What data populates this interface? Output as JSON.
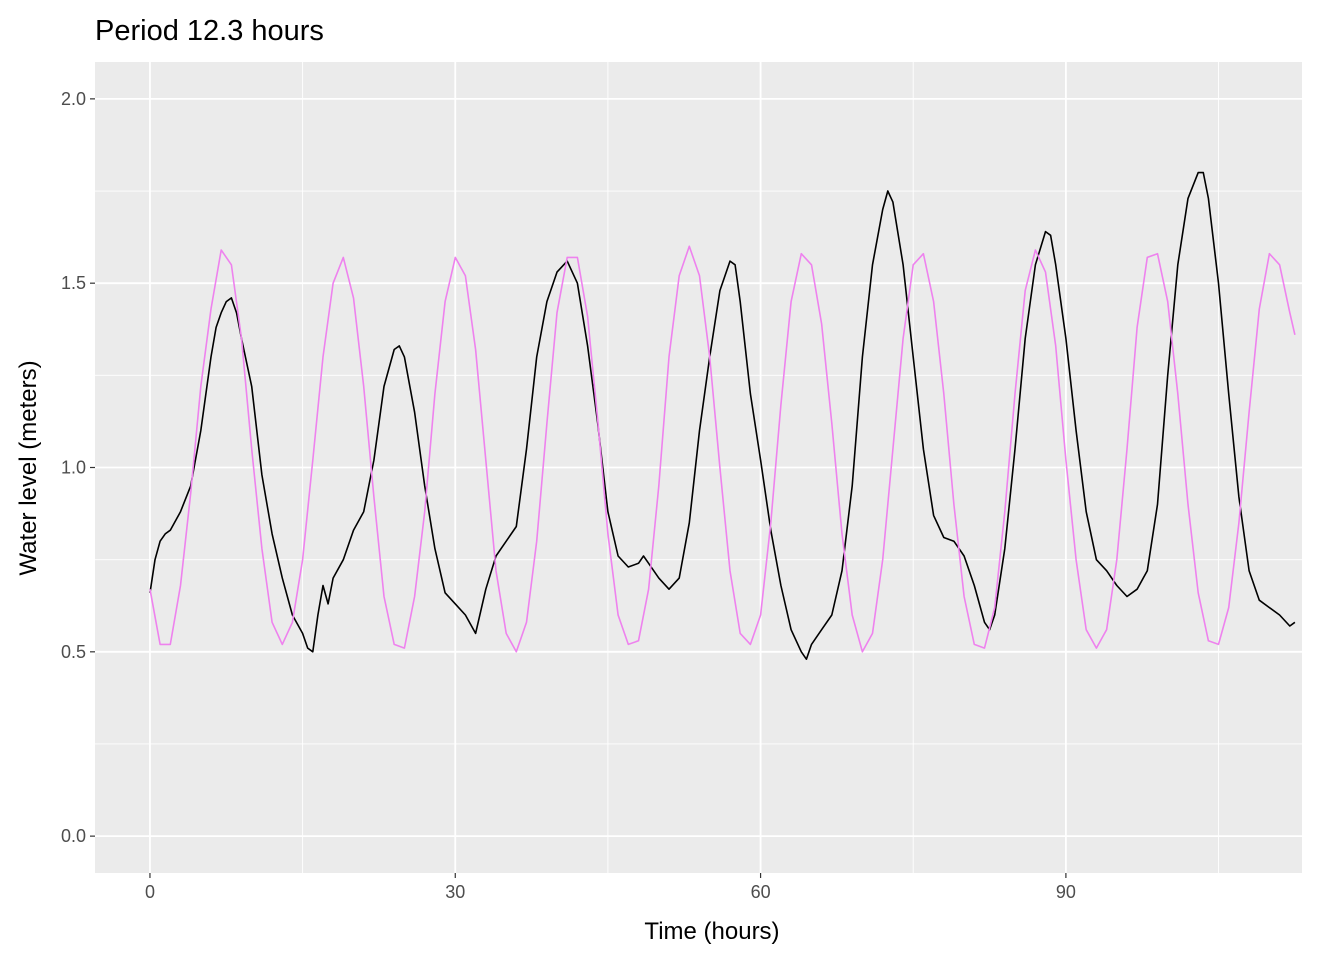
{
  "chart_data": {
    "type": "line",
    "title": "Period 12.3 hours",
    "xlabel": "Time (hours)",
    "ylabel": "Water level (meters)",
    "xlim": [
      -5.4,
      113.2
    ],
    "ylim": [
      -0.1,
      2.1
    ],
    "x_ticks": [
      0,
      30,
      60,
      90
    ],
    "x_tick_labels": [
      "0",
      "30",
      "60",
      "90"
    ],
    "y_ticks": [
      0.0,
      0.5,
      1.0,
      1.5,
      2.0
    ],
    "y_tick_labels": [
      "0.0",
      "0.5",
      "1.0",
      "1.5",
      "2.0"
    ],
    "x_minor": [
      15,
      45,
      75,
      105
    ],
    "y_minor": [
      0.25,
      0.75,
      1.25,
      1.75
    ],
    "grid": true,
    "background": "#ebebeb",
    "series": [
      {
        "color": "#000000",
        "points": [
          [
            0,
            0.66
          ],
          [
            0.5,
            0.75
          ],
          [
            1,
            0.8
          ],
          [
            1.5,
            0.82
          ],
          [
            2,
            0.83
          ],
          [
            3,
            0.88
          ],
          [
            4,
            0.95
          ],
          [
            5,
            1.1
          ],
          [
            6,
            1.3
          ],
          [
            6.5,
            1.38
          ],
          [
            7,
            1.42
          ],
          [
            7.5,
            1.45
          ],
          [
            8,
            1.46
          ],
          [
            8.5,
            1.42
          ],
          [
            9,
            1.35
          ],
          [
            10,
            1.22
          ],
          [
            11,
            0.98
          ],
          [
            12,
            0.82
          ],
          [
            13,
            0.7
          ],
          [
            14,
            0.6
          ],
          [
            15,
            0.55
          ],
          [
            15.5,
            0.51
          ],
          [
            16,
            0.5
          ],
          [
            16.5,
            0.6
          ],
          [
            17,
            0.68
          ],
          [
            17.5,
            0.63
          ],
          [
            18,
            0.7
          ],
          [
            19,
            0.75
          ],
          [
            20,
            0.83
          ],
          [
            21,
            0.88
          ],
          [
            22,
            1.02
          ],
          [
            23,
            1.22
          ],
          [
            24,
            1.32
          ],
          [
            24.5,
            1.33
          ],
          [
            25,
            1.3
          ],
          [
            26,
            1.15
          ],
          [
            27,
            0.95
          ],
          [
            28,
            0.78
          ],
          [
            29,
            0.66
          ],
          [
            30,
            0.63
          ],
          [
            31,
            0.6
          ],
          [
            32,
            0.55
          ],
          [
            33,
            0.67
          ],
          [
            34,
            0.76
          ],
          [
            35,
            0.8
          ],
          [
            36,
            0.84
          ],
          [
            37,
            1.05
          ],
          [
            38,
            1.3
          ],
          [
            39,
            1.45
          ],
          [
            40,
            1.53
          ],
          [
            41,
            1.56
          ],
          [
            42,
            1.5
          ],
          [
            43,
            1.33
          ],
          [
            44,
            1.12
          ],
          [
            45,
            0.88
          ],
          [
            46,
            0.76
          ],
          [
            47,
            0.73
          ],
          [
            48,
            0.74
          ],
          [
            48.5,
            0.76
          ],
          [
            49,
            0.74
          ],
          [
            50,
            0.7
          ],
          [
            51,
            0.67
          ],
          [
            52,
            0.7
          ],
          [
            53,
            0.85
          ],
          [
            54,
            1.1
          ],
          [
            55,
            1.3
          ],
          [
            56,
            1.48
          ],
          [
            57,
            1.56
          ],
          [
            57.5,
            1.55
          ],
          [
            58,
            1.45
          ],
          [
            59,
            1.2
          ],
          [
            60,
            1.02
          ],
          [
            61,
            0.83
          ],
          [
            62,
            0.68
          ],
          [
            63,
            0.56
          ],
          [
            64,
            0.5
          ],
          [
            64.5,
            0.48
          ],
          [
            65,
            0.52
          ],
          [
            66,
            0.56
          ],
          [
            67,
            0.6
          ],
          [
            68,
            0.72
          ],
          [
            69,
            0.95
          ],
          [
            70,
            1.3
          ],
          [
            71,
            1.55
          ],
          [
            72,
            1.7
          ],
          [
            72.5,
            1.75
          ],
          [
            73,
            1.72
          ],
          [
            74,
            1.55
          ],
          [
            75,
            1.3
          ],
          [
            76,
            1.05
          ],
          [
            77,
            0.87
          ],
          [
            78,
            0.81
          ],
          [
            79,
            0.8
          ],
          [
            80,
            0.76
          ],
          [
            81,
            0.68
          ],
          [
            82,
            0.58
          ],
          [
            82.5,
            0.56
          ],
          [
            83,
            0.6
          ],
          [
            84,
            0.78
          ],
          [
            85,
            1.05
          ],
          [
            86,
            1.35
          ],
          [
            87,
            1.55
          ],
          [
            88,
            1.64
          ],
          [
            88.5,
            1.63
          ],
          [
            89,
            1.55
          ],
          [
            90,
            1.35
          ],
          [
            91,
            1.1
          ],
          [
            92,
            0.88
          ],
          [
            93,
            0.75
          ],
          [
            94,
            0.72
          ],
          [
            95,
            0.68
          ],
          [
            96,
            0.65
          ],
          [
            97,
            0.67
          ],
          [
            98,
            0.72
          ],
          [
            99,
            0.9
          ],
          [
            100,
            1.25
          ],
          [
            101,
            1.55
          ],
          [
            102,
            1.73
          ],
          [
            103,
            1.8
          ],
          [
            103.5,
            1.8
          ],
          [
            104,
            1.73
          ],
          [
            105,
            1.5
          ],
          [
            106,
            1.2
          ],
          [
            107,
            0.92
          ],
          [
            108,
            0.72
          ],
          [
            109,
            0.64
          ],
          [
            110,
            0.62
          ],
          [
            111,
            0.6
          ],
          [
            112,
            0.57
          ],
          [
            112.5,
            0.58
          ]
        ]
      },
      {
        "color": "#ee82ee",
        "points": [
          [
            0,
            0.67
          ],
          [
            1,
            0.52
          ],
          [
            2,
            0.52
          ],
          [
            3,
            0.68
          ],
          [
            4,
            0.93
          ],
          [
            5,
            1.22
          ],
          [
            6,
            1.43
          ],
          [
            7,
            1.59
          ],
          [
            8,
            1.55
          ],
          [
            9,
            1.35
          ],
          [
            10,
            1.05
          ],
          [
            11,
            0.78
          ],
          [
            12,
            0.58
          ],
          [
            13,
            0.52
          ],
          [
            14,
            0.58
          ],
          [
            15,
            0.75
          ],
          [
            16,
            1.02
          ],
          [
            17,
            1.3
          ],
          [
            18,
            1.5
          ],
          [
            19,
            1.57
          ],
          [
            20,
            1.46
          ],
          [
            21,
            1.22
          ],
          [
            22,
            0.92
          ],
          [
            23,
            0.65
          ],
          [
            24,
            0.52
          ],
          [
            25,
            0.51
          ],
          [
            26,
            0.65
          ],
          [
            27,
            0.88
          ],
          [
            28,
            1.2
          ],
          [
            29,
            1.45
          ],
          [
            30,
            1.57
          ],
          [
            31,
            1.52
          ],
          [
            32,
            1.32
          ],
          [
            33,
            1.02
          ],
          [
            34,
            0.72
          ],
          [
            35,
            0.55
          ],
          [
            36,
            0.5
          ],
          [
            37,
            0.58
          ],
          [
            38,
            0.8
          ],
          [
            39,
            1.12
          ],
          [
            40,
            1.42
          ],
          [
            41,
            1.57
          ],
          [
            42,
            1.57
          ],
          [
            43,
            1.41
          ],
          [
            44,
            1.13
          ],
          [
            45,
            0.82
          ],
          [
            46,
            0.6
          ],
          [
            47,
            0.52
          ],
          [
            48,
            0.53
          ],
          [
            49,
            0.67
          ],
          [
            50,
            0.95
          ],
          [
            51,
            1.3
          ],
          [
            52,
            1.52
          ],
          [
            53,
            1.6
          ],
          [
            54,
            1.52
          ],
          [
            55,
            1.3
          ],
          [
            56,
            1.0
          ],
          [
            57,
            0.72
          ],
          [
            58,
            0.55
          ],
          [
            59,
            0.52
          ],
          [
            60,
            0.6
          ],
          [
            61,
            0.85
          ],
          [
            62,
            1.17
          ],
          [
            63,
            1.45
          ],
          [
            64,
            1.58
          ],
          [
            65,
            1.55
          ],
          [
            66,
            1.39
          ],
          [
            67,
            1.12
          ],
          [
            68,
            0.82
          ],
          [
            69,
            0.6
          ],
          [
            70,
            0.5
          ],
          [
            71,
            0.55
          ],
          [
            72,
            0.75
          ],
          [
            73,
            1.05
          ],
          [
            74,
            1.35
          ],
          [
            75,
            1.55
          ],
          [
            76,
            1.58
          ],
          [
            77,
            1.45
          ],
          [
            78,
            1.2
          ],
          [
            79,
            0.9
          ],
          [
            80,
            0.65
          ],
          [
            81,
            0.52
          ],
          [
            82,
            0.51
          ],
          [
            83,
            0.62
          ],
          [
            84,
            0.88
          ],
          [
            85,
            1.2
          ],
          [
            86,
            1.48
          ],
          [
            87,
            1.59
          ],
          [
            88,
            1.53
          ],
          [
            89,
            1.33
          ],
          [
            90,
            1.02
          ],
          [
            91,
            0.75
          ],
          [
            92,
            0.56
          ],
          [
            93,
            0.51
          ],
          [
            94,
            0.56
          ],
          [
            95,
            0.75
          ],
          [
            96,
            1.05
          ],
          [
            97,
            1.38
          ],
          [
            98,
            1.57
          ],
          [
            99,
            1.58
          ],
          [
            100,
            1.45
          ],
          [
            101,
            1.2
          ],
          [
            102,
            0.9
          ],
          [
            103,
            0.66
          ],
          [
            104,
            0.53
          ],
          [
            105,
            0.52
          ],
          [
            106,
            0.62
          ],
          [
            107,
            0.85
          ],
          [
            108,
            1.15
          ],
          [
            109,
            1.43
          ],
          [
            110,
            1.58
          ],
          [
            111,
            1.55
          ],
          [
            112,
            1.42
          ],
          [
            112.5,
            1.36
          ]
        ]
      }
    ]
  }
}
